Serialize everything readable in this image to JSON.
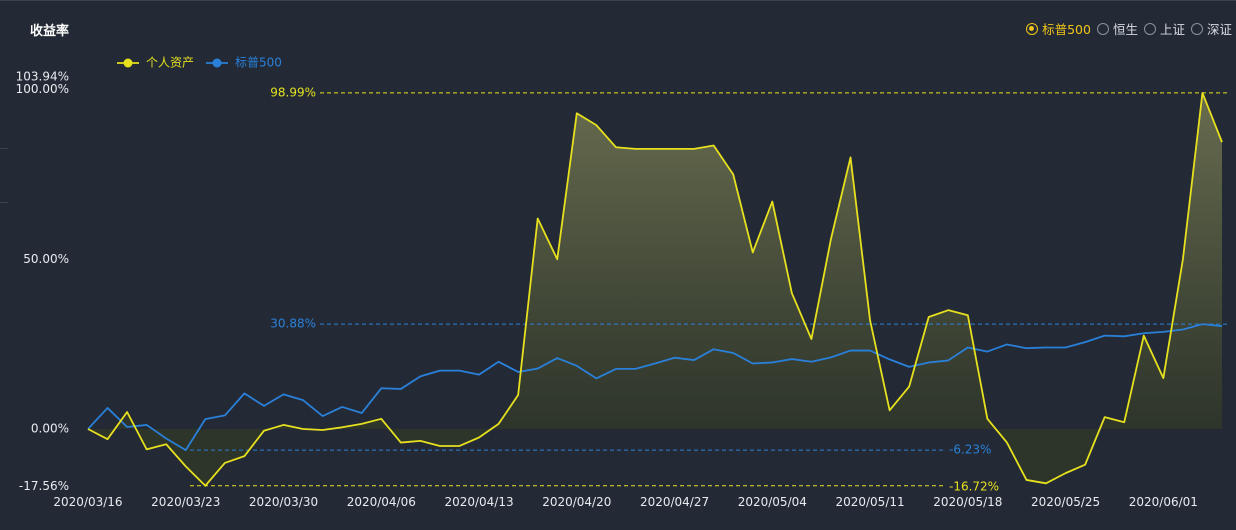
{
  "title": "收益率",
  "radio_options": [
    {
      "label": "标普500",
      "selected": true
    },
    {
      "label": "恒生",
      "selected": false
    },
    {
      "label": "上证",
      "selected": false
    },
    {
      "label": "深证",
      "selected": false
    }
  ],
  "chart_data": {
    "type": "line",
    "y_unit": "%",
    "ylim": [
      -17.56,
      103.94
    ],
    "y_ticks": [
      "103.94%",
      "100.00%",
      "50.00%",
      "0.00%",
      "-17.56%"
    ],
    "y_tick_values": [
      103.94,
      100,
      50,
      0,
      -17.56
    ],
    "x_tick_labels": [
      "2020/03/16",
      "2020/03/23",
      "2020/03/30",
      "2020/04/06",
      "2020/04/13",
      "2020/04/20",
      "2020/04/27",
      "2020/05/04",
      "2020/05/11",
      "2020/05/18",
      "2020/05/25",
      "2020/06/01"
    ],
    "x_tick_index": [
      0,
      5,
      10,
      15,
      20,
      25,
      30,
      35,
      40,
      45,
      50,
      55
    ],
    "grid": false,
    "legend_position": "top-left",
    "series": [
      {
        "name": "个人资产",
        "color": "#e6e01e",
        "area": true,
        "values": [
          0,
          -3,
          5,
          -6,
          -4.5,
          -11,
          -16.72,
          -10,
          -8,
          -0.5,
          1.2,
          0,
          -0.3,
          0.5,
          1.5,
          3,
          -4,
          -3.5,
          -5,
          -5,
          -2.5,
          1.5,
          10,
          62,
          50,
          93,
          89.5,
          83,
          82.5,
          82.5,
          82.5,
          82.5,
          83.5,
          75,
          52,
          67,
          40,
          26.5,
          56,
          80,
          32,
          5.5,
          12.5,
          33,
          35,
          33.5,
          3,
          -4,
          -15,
          -16,
          -13,
          -10.5,
          3.5,
          2,
          27.5,
          15,
          50,
          98.99,
          84.5
        ]
      },
      {
        "name": "标普500",
        "color": "#2a80d8",
        "area": false,
        "values": [
          0,
          6.2,
          0.6,
          1.2,
          -2.8,
          -6.23,
          2.9,
          4,
          10.5,
          6.8,
          10.2,
          8.5,
          3.8,
          6.5,
          4.7,
          12,
          11.8,
          15.5,
          17.2,
          17.2,
          16,
          19.8,
          16.8,
          17.8,
          20.9,
          18.6,
          14.9,
          17.7,
          17.7,
          19.3,
          21,
          20.3,
          23.5,
          22.4,
          19.3,
          19.6,
          20.6,
          19.8,
          21.1,
          23.1,
          23.1,
          20.5,
          18.3,
          19.6,
          20.2,
          24,
          22.8,
          24.9,
          23.8,
          24,
          24,
          25.6,
          27.5,
          27.3,
          28.2,
          28.6,
          29.3,
          30.88,
          30.3
        ]
      }
    ],
    "reference_lines": [
      {
        "label": "98.99%",
        "value": 98.99,
        "color": "#e6e01e"
      },
      {
        "label": "30.88%",
        "value": 30.88,
        "color": "#2a80d8"
      },
      {
        "label": "-6.23%",
        "value": -6.23,
        "color": "#2a80d8"
      },
      {
        "label": "-16.72%",
        "value": -16.72,
        "color": "#e6e01e"
      }
    ]
  }
}
